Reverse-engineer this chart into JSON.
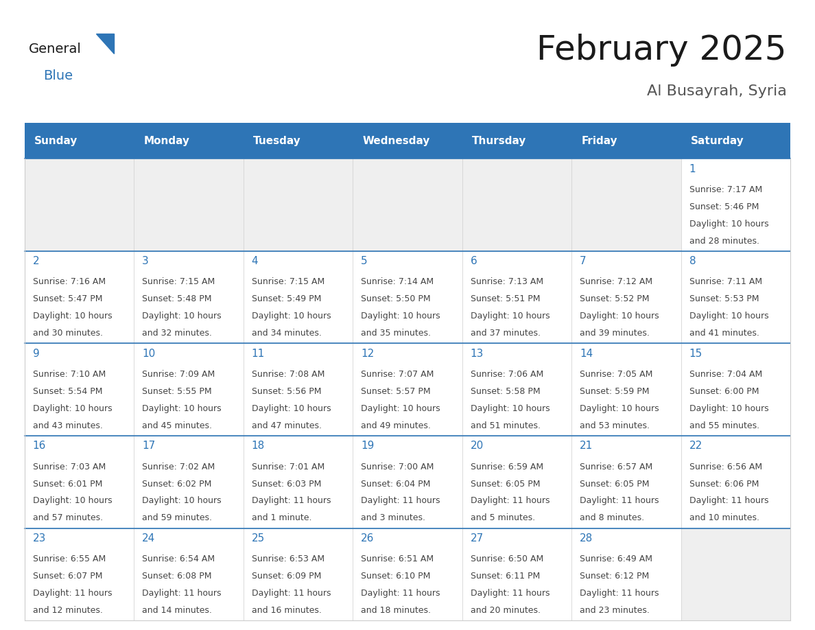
{
  "title": "February 2025",
  "subtitle": "Al Busayrah, Syria",
  "header_color": "#2E75B6",
  "header_text_color": "#FFFFFF",
  "empty_cell_color": "#EFEFEF",
  "cell_bg_color": "#FFFFFF",
  "cell_border_color": "#CCCCCC",
  "row_divider_color": "#2E75B6",
  "day_num_color": "#2E75B6",
  "text_color": "#444444",
  "days_of_week": [
    "Sunday",
    "Monday",
    "Tuesday",
    "Wednesday",
    "Thursday",
    "Friday",
    "Saturday"
  ],
  "calendar_data": [
    [
      null,
      null,
      null,
      null,
      null,
      null,
      {
        "day": 1,
        "sunrise": "7:17 AM",
        "sunset": "5:46 PM",
        "daylight": "10 hours\nand 28 minutes."
      }
    ],
    [
      {
        "day": 2,
        "sunrise": "7:16 AM",
        "sunset": "5:47 PM",
        "daylight": "10 hours\nand 30 minutes."
      },
      {
        "day": 3,
        "sunrise": "7:15 AM",
        "sunset": "5:48 PM",
        "daylight": "10 hours\nand 32 minutes."
      },
      {
        "day": 4,
        "sunrise": "7:15 AM",
        "sunset": "5:49 PM",
        "daylight": "10 hours\nand 34 minutes."
      },
      {
        "day": 5,
        "sunrise": "7:14 AM",
        "sunset": "5:50 PM",
        "daylight": "10 hours\nand 35 minutes."
      },
      {
        "day": 6,
        "sunrise": "7:13 AM",
        "sunset": "5:51 PM",
        "daylight": "10 hours\nand 37 minutes."
      },
      {
        "day": 7,
        "sunrise": "7:12 AM",
        "sunset": "5:52 PM",
        "daylight": "10 hours\nand 39 minutes."
      },
      {
        "day": 8,
        "sunrise": "7:11 AM",
        "sunset": "5:53 PM",
        "daylight": "10 hours\nand 41 minutes."
      }
    ],
    [
      {
        "day": 9,
        "sunrise": "7:10 AM",
        "sunset": "5:54 PM",
        "daylight": "10 hours\nand 43 minutes."
      },
      {
        "day": 10,
        "sunrise": "7:09 AM",
        "sunset": "5:55 PM",
        "daylight": "10 hours\nand 45 minutes."
      },
      {
        "day": 11,
        "sunrise": "7:08 AM",
        "sunset": "5:56 PM",
        "daylight": "10 hours\nand 47 minutes."
      },
      {
        "day": 12,
        "sunrise": "7:07 AM",
        "sunset": "5:57 PM",
        "daylight": "10 hours\nand 49 minutes."
      },
      {
        "day": 13,
        "sunrise": "7:06 AM",
        "sunset": "5:58 PM",
        "daylight": "10 hours\nand 51 minutes."
      },
      {
        "day": 14,
        "sunrise": "7:05 AM",
        "sunset": "5:59 PM",
        "daylight": "10 hours\nand 53 minutes."
      },
      {
        "day": 15,
        "sunrise": "7:04 AM",
        "sunset": "6:00 PM",
        "daylight": "10 hours\nand 55 minutes."
      }
    ],
    [
      {
        "day": 16,
        "sunrise": "7:03 AM",
        "sunset": "6:01 PM",
        "daylight": "10 hours\nand 57 minutes."
      },
      {
        "day": 17,
        "sunrise": "7:02 AM",
        "sunset": "6:02 PM",
        "daylight": "10 hours\nand 59 minutes."
      },
      {
        "day": 18,
        "sunrise": "7:01 AM",
        "sunset": "6:03 PM",
        "daylight": "11 hours\nand 1 minute."
      },
      {
        "day": 19,
        "sunrise": "7:00 AM",
        "sunset": "6:04 PM",
        "daylight": "11 hours\nand 3 minutes."
      },
      {
        "day": 20,
        "sunrise": "6:59 AM",
        "sunset": "6:05 PM",
        "daylight": "11 hours\nand 5 minutes."
      },
      {
        "day": 21,
        "sunrise": "6:57 AM",
        "sunset": "6:05 PM",
        "daylight": "11 hours\nand 8 minutes."
      },
      {
        "day": 22,
        "sunrise": "6:56 AM",
        "sunset": "6:06 PM",
        "daylight": "11 hours\nand 10 minutes."
      }
    ],
    [
      {
        "day": 23,
        "sunrise": "6:55 AM",
        "sunset": "6:07 PM",
        "daylight": "11 hours\nand 12 minutes."
      },
      {
        "day": 24,
        "sunrise": "6:54 AM",
        "sunset": "6:08 PM",
        "daylight": "11 hours\nand 14 minutes."
      },
      {
        "day": 25,
        "sunrise": "6:53 AM",
        "sunset": "6:09 PM",
        "daylight": "11 hours\nand 16 minutes."
      },
      {
        "day": 26,
        "sunrise": "6:51 AM",
        "sunset": "6:10 PM",
        "daylight": "11 hours\nand 18 minutes."
      },
      {
        "day": 27,
        "sunrise": "6:50 AM",
        "sunset": "6:11 PM",
        "daylight": "11 hours\nand 20 minutes."
      },
      {
        "day": 28,
        "sunrise": "6:49 AM",
        "sunset": "6:12 PM",
        "daylight": "11 hours\nand 23 minutes."
      },
      null
    ]
  ],
  "logo_general_color": "#1a1a1a",
  "logo_blue_color": "#2E75B6",
  "title_fontsize": 36,
  "subtitle_fontsize": 16,
  "header_fontsize": 11,
  "day_num_fontsize": 11,
  "cell_text_fontsize": 9,
  "fig_width": 11.88,
  "fig_height": 9.18
}
